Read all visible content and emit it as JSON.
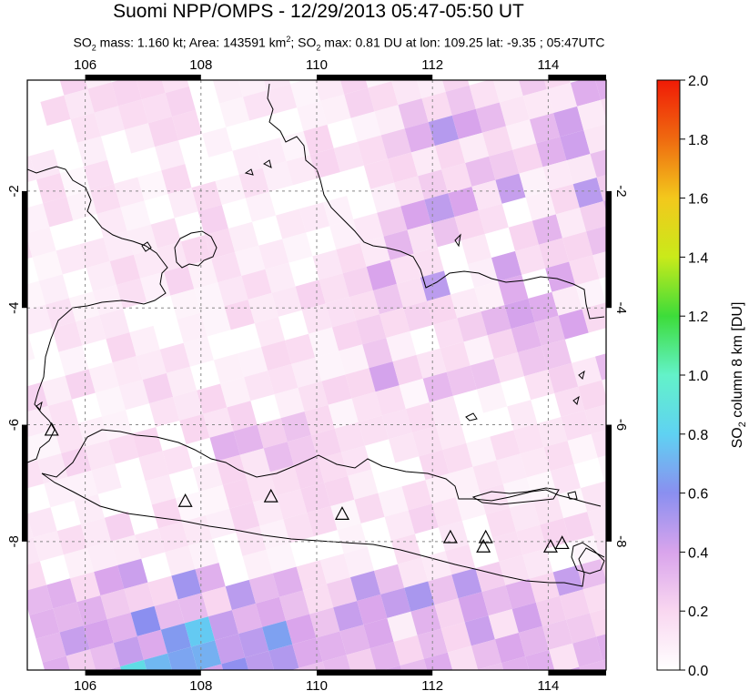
{
  "title": "Suomi NPP/OMPS - 12/29/2013 05:47-05:50 UT",
  "subtitle": {
    "so2_mass_label": "SO",
    "so2_mass_sub": "2",
    "mass_text": " mass: 1.160 kt; Area: 143591 km",
    "area_sup": "2",
    "so2_max_prefix": "; SO",
    "so2_max_sub": "2",
    "max_text": " max: 0.81 DU at lon: 109.25 lat: -9.35 ; 05:47UTC"
  },
  "map": {
    "lon_range": [
      105,
      115
    ],
    "lat_range": [
      -10.2,
      -0.1
    ],
    "lon_ticks": [
      "106",
      "108",
      "110",
      "112",
      "114"
    ],
    "lat_ticks": [
      "-2",
      "-4",
      "-6",
      "-8"
    ],
    "grid": "dashed",
    "volcano_marker": "triangle-outline-icon",
    "volcanoes": [
      {
        "lon": 105.42,
        "lat": -6.1
      },
      {
        "lon": 107.73,
        "lat": -7.32
      },
      {
        "lon": 109.21,
        "lat": -7.24
      },
      {
        "lon": 110.44,
        "lat": -7.54
      },
      {
        "lon": 112.31,
        "lat": -7.94
      },
      {
        "lon": 112.92,
        "lat": -7.94
      },
      {
        "lon": 112.88,
        "lat": -8.1
      },
      {
        "lon": 114.04,
        "lat": -8.1
      },
      {
        "lon": 114.24,
        "lat": -8.04
      }
    ]
  },
  "colorbar": {
    "label": "SO2 column 8 km [DU]",
    "label_main": "SO",
    "label_sub": "2",
    "label_rest": " column 8 km [DU]",
    "ticks": [
      "0.0",
      "0.2",
      "0.4",
      "0.6",
      "0.8",
      "1.0",
      "1.2",
      "1.4",
      "1.6",
      "1.8",
      "2.0"
    ],
    "min": 0.0,
    "max": 2.0,
    "colors": [
      "#ffffff",
      "#f9d7f0",
      "#d9a4ec",
      "#8a8ff0",
      "#5fd2f2",
      "#63f2c9",
      "#3ddc3a",
      "#c9ea1a",
      "#f3c81c",
      "#ef6a10",
      "#f01b06"
    ]
  }
}
